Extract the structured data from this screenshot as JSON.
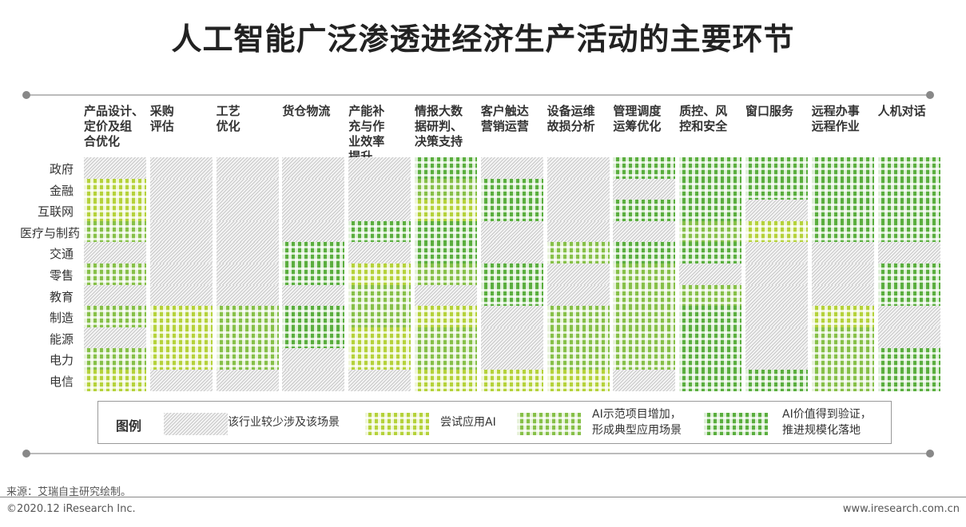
{
  "title": "人工智能广泛渗透进经济生产活动的主要环节",
  "chart_data": {
    "type": "heatmap",
    "title": "人工智能广泛渗透进经济生产活动的主要环节",
    "columns": [
      "产品设计、\n定价及组\n合优化",
      "采购\n评估",
      "工艺\n优化",
      "货仓物流",
      "产能补\n充与作\n业效率\n提升",
      "情报大数\n据研判、\n决策支持",
      "客户触达\n营销运营",
      "设备运维\n故损分析",
      "管理调度\n运筹优化",
      "质控、风\n控和安全",
      "窗口服务",
      "远程办事\n远程作业",
      "人机对话"
    ],
    "rows": [
      "政府",
      "金融",
      "互联网",
      "医疗与制药",
      "交通",
      "零售",
      "教育",
      "制造",
      "能源",
      "电力",
      "电信"
    ],
    "levels": [
      "该行业较少涉及该场景",
      "尝试应用AI",
      "AI示范项目增加，\n形成典型应用场景",
      "AI价值得到验证，\n推进规模化落地"
    ],
    "level_colors": [
      "#d0d0d0",
      "#b5d23a",
      "#86c048",
      "#5aae3e"
    ],
    "values_by_column": [
      [
        0,
        1,
        1,
        2,
        0,
        2,
        0,
        2,
        0,
        2,
        1
      ],
      [
        0,
        0,
        0,
        0,
        0,
        0,
        0,
        1,
        1,
        1,
        0
      ],
      [
        0,
        0,
        0,
        0,
        0,
        0,
        0,
        2,
        2,
        2,
        0
      ],
      [
        0,
        0,
        0,
        0,
        3,
        3,
        0,
        3,
        3,
        0,
        0
      ],
      [
        0,
        0,
        0,
        3,
        0,
        1,
        2,
        2,
        1,
        1,
        0
      ],
      [
        3,
        2,
        1,
        3,
        3,
        2,
        0,
        1,
        2,
        2,
        1
      ],
      [
        0,
        3,
        3,
        0,
        0,
        3,
        3,
        0,
        0,
        0,
        1
      ],
      [
        0,
        0,
        0,
        0,
        2,
        0,
        0,
        2,
        2,
        2,
        1
      ],
      [
        3,
        0,
        3,
        0,
        3,
        2,
        2,
        2,
        2,
        2,
        0
      ],
      [
        3,
        3,
        3,
        2,
        3,
        0,
        2,
        3,
        3,
        3,
        3
      ],
      [
        3,
        3,
        0,
        1,
        0,
        0,
        0,
        0,
        0,
        0,
        3
      ],
      [
        3,
        3,
        3,
        3,
        0,
        0,
        0,
        1,
        2,
        2,
        2
      ],
      [
        3,
        3,
        3,
        3,
        0,
        3,
        3,
        0,
        0,
        3,
        3
      ]
    ],
    "legend_title": "图例",
    "legend_placement": "bottom"
  },
  "source": "来源：艾瑞自主研究绘制。",
  "copyright": "©2020.12 iResearch Inc.",
  "website": "www.iresearch.com.cn"
}
